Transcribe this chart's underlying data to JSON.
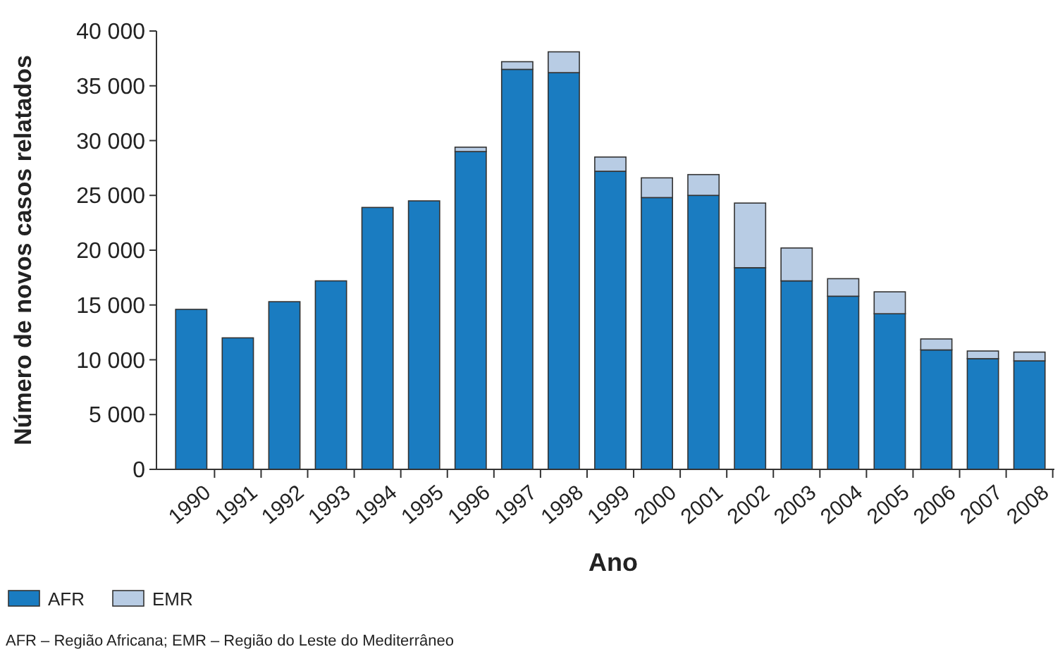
{
  "chart_data": {
    "type": "bar",
    "stacked": true,
    "xlabel": "Ano",
    "ylabel": "Número de novos casos relatados",
    "categories": [
      "1990",
      "1991",
      "1992",
      "1993",
      "1994",
      "1995",
      "1996",
      "1997",
      "1998",
      "1999",
      "2000",
      "2001",
      "2002",
      "2003",
      "2004",
      "2005",
      "2006",
      "2007",
      "2008"
    ],
    "series": [
      {
        "name": "AFR",
        "color": "#1a7cc1",
        "values": [
          14600,
          12000,
          15300,
          17200,
          23900,
          24500,
          29000,
          36500,
          36200,
          27200,
          24800,
          25000,
          18400,
          17200,
          15800,
          14200,
          10900,
          10100,
          9900
        ]
      },
      {
        "name": "EMR",
        "color": "#b8cce4",
        "values": [
          0,
          0,
          0,
          0,
          0,
          0,
          400,
          700,
          1900,
          1300,
          1800,
          1900,
          5900,
          3000,
          1600,
          2000,
          1000,
          700,
          800
        ]
      }
    ],
    "ylim": [
      0,
      40000
    ],
    "yticks": [
      0,
      {
        "value": 5000,
        "label": "5 000"
      },
      {
        "value": 10000,
        "label": "10 000"
      },
      {
        "value": 15000,
        "label": "15 000"
      },
      {
        "value": 20000,
        "label": "20 000"
      },
      {
        "value": 25000,
        "label": "25 000"
      },
      {
        "value": 30000,
        "label": "30 000"
      },
      {
        "value": 35000,
        "label": "35 000"
      },
      {
        "value": 40000,
        "label": "40 000"
      }
    ],
    "grid": false,
    "legend": "bottom left",
    "annotations": [
      "AFR – Região Africana; EMR – Região do Leste do Mediterrâneo"
    ]
  }
}
